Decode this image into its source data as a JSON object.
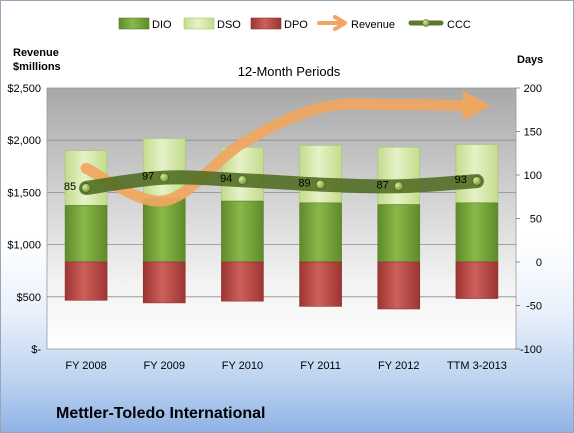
{
  "chart_data": {
    "type": "bar",
    "subtitle": "12-Month Periods",
    "ylabel_left": "Revenue\n$millions",
    "ylabel_right": "Days",
    "categories": [
      "FY 2008",
      "FY 2009",
      "FY 2010",
      "FY 2011",
      "FY 2012",
      "TTM 3-2013"
    ],
    "left_axis": {
      "range": [
        0,
        2500
      ],
      "ticks": [
        0,
        500,
        1000,
        1500,
        2000,
        2500
      ],
      "tick_labels": [
        "$-",
        "$500",
        "$1,000",
        "$1,500",
        "$2,000",
        "$2,500"
      ]
    },
    "right_axis": {
      "range": [
        -100,
        200
      ],
      "ticks": [
        -100,
        -50,
        0,
        50,
        100,
        150,
        200
      ],
      "tick_labels": [
        "-100",
        "-50",
        "0",
        "50",
        "100",
        "150",
        "200"
      ]
    },
    "series": [
      {
        "name": "DIO",
        "kind": "stacked-bar",
        "axis": "right",
        "color": "#7ea33c",
        "values": [
          65,
          73,
          70,
          68,
          66,
          68
        ]
      },
      {
        "name": "DSO",
        "kind": "stacked-bar",
        "axis": "right",
        "color": "#d4e8a6",
        "values": [
          63,
          69,
          62,
          66,
          66,
          67
        ]
      },
      {
        "name": "DPO",
        "kind": "bar-negative",
        "axis": "right",
        "color": "#c0504d",
        "values": [
          -44,
          -47,
          -45,
          -51,
          -54,
          -42
        ]
      },
      {
        "name": "Revenue",
        "kind": "arrow-line",
        "axis": "left",
        "color": "#f0a660",
        "values": [
          1730,
          1420,
          1970,
          2310,
          2340,
          2330
        ]
      },
      {
        "name": "CCC",
        "kind": "line-markers",
        "axis": "right",
        "color": "#5d7a2c",
        "values": [
          85,
          97,
          94,
          89,
          87,
          93
        ],
        "labels": [
          "85",
          "97",
          "94",
          "89",
          "87",
          "93"
        ]
      }
    ],
    "legend_position": "top",
    "grid": true
  },
  "footer": {
    "company": "Mettler-Toledo International"
  }
}
